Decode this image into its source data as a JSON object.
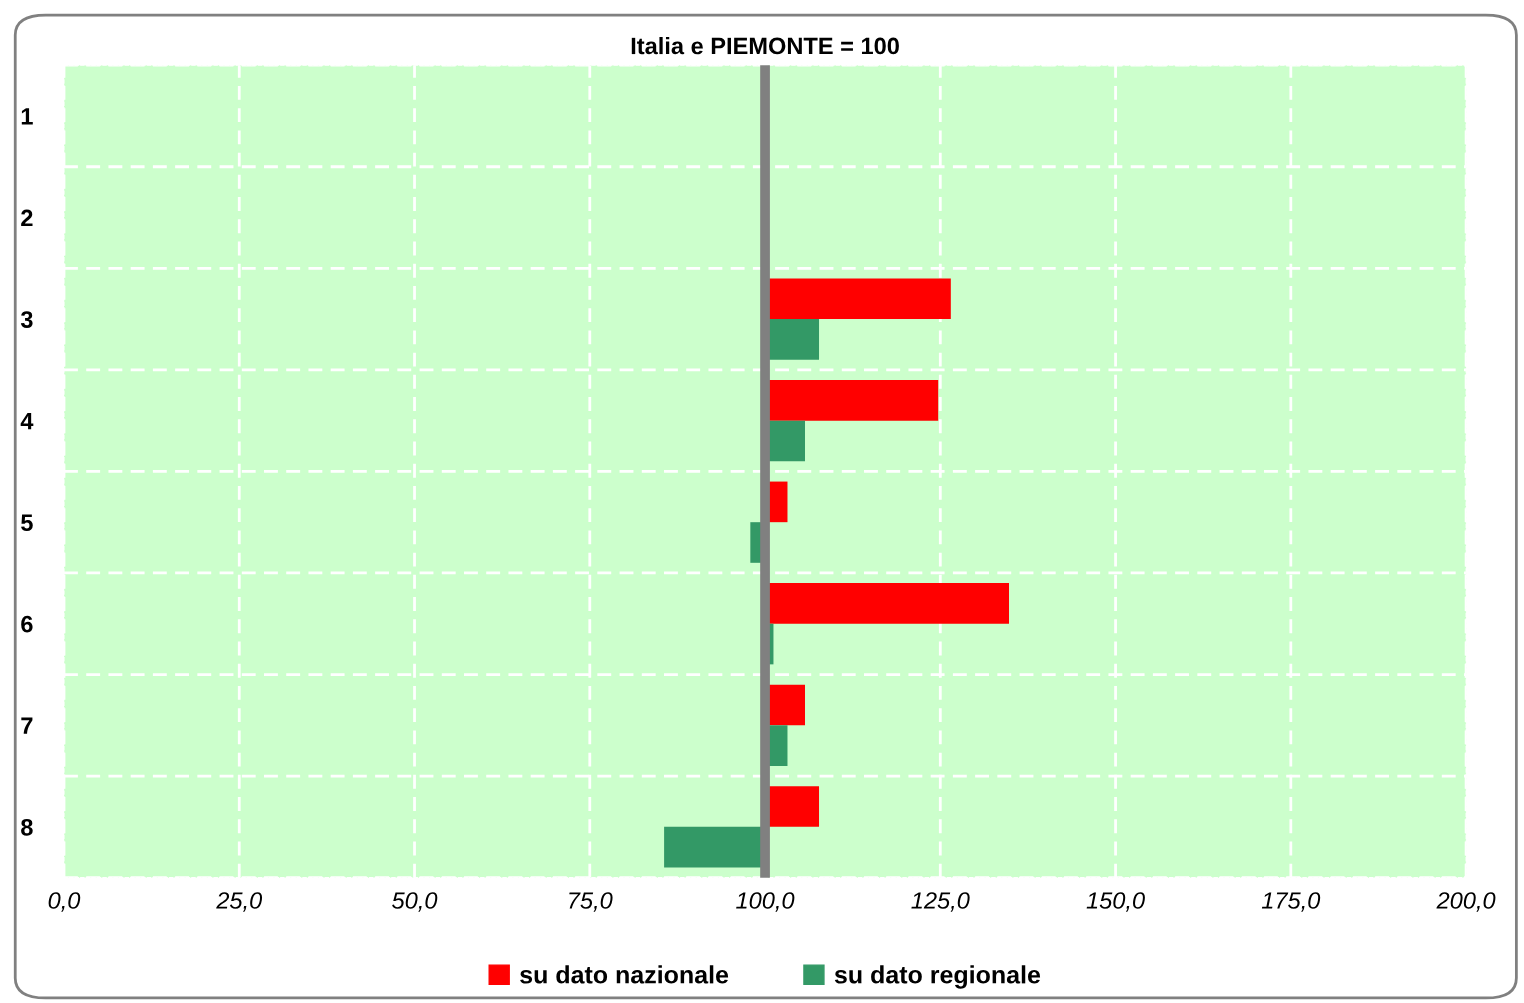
{
  "chart_data": {
    "type": "bar",
    "orientation": "horizontal",
    "title": "Italia e PIEMONTE = 100",
    "categories": [
      "1",
      "2",
      "3",
      "4",
      "5",
      "6",
      "7",
      "8"
    ],
    "series": [
      {
        "name": "su dato nazionale",
        "color": "#ff0000",
        "base": [
          null,
          null,
          100,
          100,
          100,
          100,
          100,
          100
        ],
        "values": [
          null,
          null,
          26.5,
          24.7,
          3.2,
          34.8,
          5.7,
          7.7
        ]
      },
      {
        "name": "su dato regionale",
        "color": "#339966",
        "base": [
          null,
          null,
          100,
          100,
          100,
          100,
          100,
          100
        ],
        "values": [
          null,
          null,
          7.7,
          5.7,
          -2.1,
          1.2,
          3.2,
          -14.4
        ]
      }
    ],
    "xlim": [
      0,
      200
    ],
    "xticks": [
      {
        "value": 0,
        "label": "0,0"
      },
      {
        "value": 25,
        "label": "25,0"
      },
      {
        "value": 50,
        "label": "50,0"
      },
      {
        "value": 75,
        "label": "75,0"
      },
      {
        "value": 100,
        "label": "100,0"
      },
      {
        "value": 125,
        "label": "125,0"
      },
      {
        "value": 150,
        "label": "150,0"
      },
      {
        "value": 175,
        "label": "175,0"
      },
      {
        "value": 200,
        "label": "200,0"
      }
    ],
    "ref_lines": [
      {
        "axis": "x",
        "value": 100,
        "label": null,
        "color": "#808080"
      }
    ],
    "grid": true,
    "legend": "bottom"
  }
}
